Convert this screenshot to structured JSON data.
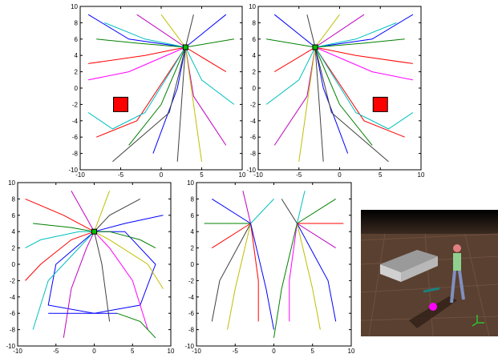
{
  "chart_data": [
    {
      "type": "line",
      "xlim": [
        -10,
        10
      ],
      "ylim": [
        -10,
        10
      ],
      "xticks": [
        -10,
        -5,
        0,
        5,
        10
      ],
      "yticks": [
        -10,
        -8,
        -6,
        -4,
        -2,
        0,
        2,
        4,
        6,
        8,
        10
      ],
      "goal": {
        "x": 3,
        "y": 5
      },
      "obstacle": {
        "x": -5,
        "y": -2
      },
      "series": [
        {
          "color": "#0000ff",
          "x": [
            -9,
            -4,
            3
          ],
          "values": [
            9,
            6,
            5
          ]
        },
        {
          "color": "#008000",
          "x": [
            -8,
            -3,
            3
          ],
          "values": [
            6,
            5.5,
            5
          ]
        },
        {
          "color": "#ff0000",
          "x": [
            -9,
            -2,
            3
          ],
          "values": [
            3,
            4,
            5
          ]
        },
        {
          "color": "#00bfbf",
          "x": [
            -7,
            -2,
            3
          ],
          "values": [
            8,
            6,
            5
          ]
        },
        {
          "color": "#bf00bf",
          "x": [
            -3,
            3
          ],
          "values": [
            9,
            5
          ]
        },
        {
          "color": "#bfbf00",
          "x": [
            0,
            3
          ],
          "values": [
            9,
            5
          ]
        },
        {
          "color": "#404040",
          "x": [
            4,
            3
          ],
          "values": [
            9,
            5
          ]
        },
        {
          "color": "#0000ff",
          "x": [
            8,
            3
          ],
          "values": [
            9,
            5
          ]
        },
        {
          "color": "#008000",
          "x": [
            9,
            3
          ],
          "values": [
            6,
            5
          ]
        },
        {
          "color": "#ff0000",
          "x": [
            8,
            3
          ],
          "values": [
            2,
            5
          ]
        },
        {
          "color": "#00bfbf",
          "x": [
            9,
            5,
            3
          ],
          "values": [
            -2,
            1,
            5
          ]
        },
        {
          "color": "#bf00bf",
          "x": [
            8,
            4,
            3
          ],
          "values": [
            -7,
            -1,
            5
          ]
        },
        {
          "color": "#bfbf00",
          "x": [
            5,
            3
          ],
          "values": [
            -9,
            5
          ]
        },
        {
          "color": "#404040",
          "x": [
            2,
            3
          ],
          "values": [
            -9,
            5
          ]
        },
        {
          "color": "#0000ff",
          "x": [
            -1,
            2,
            3
          ],
          "values": [
            -8,
            0,
            5
          ]
        },
        {
          "color": "#008000",
          "x": [
            -4,
            0,
            3
          ],
          "values": [
            -7,
            -2,
            5
          ]
        },
        {
          "color": "#ff0000",
          "x": [
            -8,
            -3,
            3
          ],
          "values": [
            -6,
            -4,
            5
          ]
        },
        {
          "color": "#00bfbf",
          "x": [
            -9,
            -6,
            -2,
            3
          ],
          "values": [
            -3,
            -5,
            -3,
            5
          ]
        },
        {
          "color": "#ff00ff",
          "x": [
            -9,
            -4,
            3
          ],
          "values": [
            1,
            2,
            5
          ]
        },
        {
          "color": "#404040",
          "x": [
            -6,
            1,
            3
          ],
          "values": [
            -9,
            -3,
            5
          ]
        }
      ]
    },
    {
      "type": "line",
      "xlim": [
        -10,
        10
      ],
      "ylim": [
        -10,
        10
      ],
      "xticks": [
        -10,
        -5,
        0,
        5,
        10
      ],
      "yticks": [
        -10,
        -8,
        -6,
        -4,
        -2,
        0,
        2,
        4,
        6,
        8,
        10
      ],
      "goal": {
        "x": -3,
        "y": 5
      },
      "obstacle": {
        "x": 5,
        "y": -2
      },
      "series": [
        {
          "color": "#0000ff",
          "x": [
            9,
            4,
            -3
          ],
          "values": [
            9,
            6,
            5
          ]
        },
        {
          "color": "#008000",
          "x": [
            8,
            3,
            -3
          ],
          "values": [
            6,
            5.5,
            5
          ]
        },
        {
          "color": "#ff0000",
          "x": [
            9,
            2,
            -3
          ],
          "values": [
            3,
            4,
            5
          ]
        },
        {
          "color": "#00bfbf",
          "x": [
            7,
            2,
            -3
          ],
          "values": [
            8,
            6,
            5
          ]
        },
        {
          "color": "#bf00bf",
          "x": [
            3,
            -3
          ],
          "values": [
            9,
            5
          ]
        },
        {
          "color": "#bfbf00",
          "x": [
            0,
            -3
          ],
          "values": [
            9,
            5
          ]
        },
        {
          "color": "#404040",
          "x": [
            -4,
            -3
          ],
          "values": [
            9,
            5
          ]
        },
        {
          "color": "#0000ff",
          "x": [
            -8,
            -3
          ],
          "values": [
            9,
            5
          ]
        },
        {
          "color": "#008000",
          "x": [
            -9,
            -3
          ],
          "values": [
            6,
            5
          ]
        },
        {
          "color": "#ff0000",
          "x": [
            -8,
            -3
          ],
          "values": [
            2,
            5
          ]
        },
        {
          "color": "#00bfbf",
          "x": [
            -9,
            -5,
            -3
          ],
          "values": [
            -2,
            1,
            5
          ]
        },
        {
          "color": "#bf00bf",
          "x": [
            -8,
            -4,
            -3
          ],
          "values": [
            -7,
            -1,
            5
          ]
        },
        {
          "color": "#bfbf00",
          "x": [
            -5,
            -3
          ],
          "values": [
            -9,
            5
          ]
        },
        {
          "color": "#404040",
          "x": [
            -2,
            -3
          ],
          "values": [
            -9,
            5
          ]
        },
        {
          "color": "#0000ff",
          "x": [
            1,
            -2,
            -3
          ],
          "values": [
            -8,
            0,
            5
          ]
        },
        {
          "color": "#008000",
          "x": [
            4,
            0,
            -3
          ],
          "values": [
            -7,
            -2,
            5
          ]
        },
        {
          "color": "#ff0000",
          "x": [
            8,
            3,
            -3
          ],
          "values": [
            -6,
            -4,
            5
          ]
        },
        {
          "color": "#00bfbf",
          "x": [
            9,
            6,
            2,
            -3
          ],
          "values": [
            -3,
            -5,
            -3,
            5
          ]
        },
        {
          "color": "#ff00ff",
          "x": [
            9,
            4,
            -3
          ],
          "values": [
            1,
            2,
            5
          ]
        },
        {
          "color": "#404040",
          "x": [
            6,
            -1,
            -3
          ],
          "values": [
            -9,
            -3,
            5
          ]
        }
      ]
    },
    {
      "type": "line",
      "xlim": [
        -10,
        10
      ],
      "ylim": [
        -10,
        10
      ],
      "xticks": [
        -10,
        -5,
        0,
        5,
        10
      ],
      "yticks": [
        -10,
        -8,
        -6,
        -4,
        -2,
        0,
        2,
        4,
        6,
        8,
        10
      ],
      "goal": {
        "x": 0,
        "y": 4
      },
      "series": [
        {
          "color": "#0000ff",
          "x": [
            0,
            -5,
            -6,
            0,
            6,
            8,
            4,
            0
          ],
          "values": [
            4,
            0,
            -5,
            -6,
            -5,
            0,
            4,
            4
          ]
        },
        {
          "color": "#ff0000",
          "x": [
            -9,
            -4,
            0
          ],
          "values": [
            8,
            6,
            4
          ]
        },
        {
          "color": "#008000",
          "x": [
            -8,
            -3,
            0
          ],
          "values": [
            5,
            4.5,
            4
          ]
        },
        {
          "color": "#00bfbf",
          "x": [
            -9,
            -7,
            -2,
            0
          ],
          "values": [
            2,
            3,
            4,
            4
          ]
        },
        {
          "color": "#bf00bf",
          "x": [
            -3,
            0
          ],
          "values": [
            9,
            4
          ]
        },
        {
          "color": "#bfbf00",
          "x": [
            2,
            0
          ],
          "values": [
            9,
            4
          ]
        },
        {
          "color": "#404040",
          "x": [
            6,
            2,
            0
          ],
          "values": [
            8,
            6,
            4
          ]
        },
        {
          "color": "#0000ff",
          "x": [
            9,
            4,
            0
          ],
          "values": [
            6,
            5,
            4
          ]
        },
        {
          "color": "#008000",
          "x": [
            8,
            6,
            2,
            0
          ],
          "values": [
            2,
            3,
            4,
            4
          ]
        },
        {
          "color": "#ff0000",
          "x": [
            -9,
            -7,
            -3,
            0
          ],
          "values": [
            -2,
            0,
            3,
            4
          ]
        },
        {
          "color": "#00bfbf",
          "x": [
            -8,
            -6,
            -2,
            0
          ],
          "values": [
            -8,
            -2,
            2,
            4
          ]
        },
        {
          "color": "#bf00bf",
          "x": [
            -4,
            -3,
            -1,
            0
          ],
          "values": [
            -9,
            -3,
            2,
            4
          ]
        },
        {
          "color": "#404040",
          "x": [
            2,
            1,
            0
          ],
          "values": [
            -7,
            0,
            4
          ]
        },
        {
          "color": "#ff00ff",
          "x": [
            7,
            5,
            2,
            0
          ],
          "values": [
            -8,
            -2,
            2,
            4
          ]
        },
        {
          "color": "#bfbf00",
          "x": [
            9,
            7,
            2,
            0
          ],
          "values": [
            -3,
            0,
            3,
            4
          ]
        },
        {
          "color": "#0000ff",
          "x": [
            -6,
            3
          ],
          "values": [
            -6,
            -6
          ]
        },
        {
          "color": "#008000",
          "x": [
            8,
            6,
            3
          ],
          "values": [
            -9,
            -7,
            -6
          ]
        }
      ]
    },
    {
      "type": "line",
      "xlim": [
        -10,
        10
      ],
      "ylim": [
        -10,
        10
      ],
      "xticks": [
        -10,
        -5,
        0,
        5,
        10
      ],
      "yticks": [
        -10,
        -8,
        -6,
        -4,
        -2,
        0,
        2,
        4,
        6,
        8,
        10
      ],
      "series": [
        {
          "color": "#0000ff",
          "x": [
            -8,
            -3
          ],
          "values": [
            8,
            5
          ]
        },
        {
          "color": "#008000",
          "x": [
            -9,
            -3
          ],
          "values": [
            5,
            5
          ]
        },
        {
          "color": "#ff0000",
          "x": [
            -8,
            -3
          ],
          "values": [
            2,
            5
          ]
        },
        {
          "color": "#bf00bf",
          "x": [
            -4,
            -3
          ],
          "values": [
            9,
            5
          ]
        },
        {
          "color": "#00bfbf",
          "x": [
            0,
            -3
          ],
          "values": [
            8,
            5
          ]
        },
        {
          "color": "#404040",
          "x": [
            -3,
            -7,
            -8
          ],
          "values": [
            5,
            -2,
            -7
          ]
        },
        {
          "color": "#bfbf00",
          "x": [
            -3,
            -5,
            -6
          ],
          "values": [
            5,
            -3,
            -8
          ]
        },
        {
          "color": "#ff0000",
          "x": [
            -3,
            -2,
            -2
          ],
          "values": [
            5,
            -2,
            -7
          ]
        },
        {
          "color": "#0000ff",
          "x": [
            -3,
            -1,
            0
          ],
          "values": [
            5,
            -3,
            -8
          ]
        },
        {
          "color": "#008000",
          "x": [
            8,
            3
          ],
          "values": [
            8,
            5
          ]
        },
        {
          "color": "#ff0000",
          "x": [
            9,
            3
          ],
          "values": [
            5,
            5
          ]
        },
        {
          "color": "#bf00bf",
          "x": [
            8,
            3
          ],
          "values": [
            2,
            5
          ]
        },
        {
          "color": "#00bfbf",
          "x": [
            4,
            3
          ],
          "values": [
            9,
            5
          ]
        },
        {
          "color": "#404040",
          "x": [
            1,
            3
          ],
          "values": [
            8,
            5
          ]
        },
        {
          "color": "#0000ff",
          "x": [
            3,
            7,
            8
          ],
          "values": [
            5,
            -2,
            -7
          ]
        },
        {
          "color": "#bfbf00",
          "x": [
            3,
            5,
            6
          ],
          "values": [
            5,
            -3,
            -8
          ]
        },
        {
          "color": "#ff00ff",
          "x": [
            3,
            2,
            2
          ],
          "values": [
            5,
            -2,
            -7
          ]
        },
        {
          "color": "#008000",
          "x": [
            3,
            1,
            0
          ],
          "values": [
            5,
            -3,
            -9
          ]
        }
      ]
    }
  ]
}
